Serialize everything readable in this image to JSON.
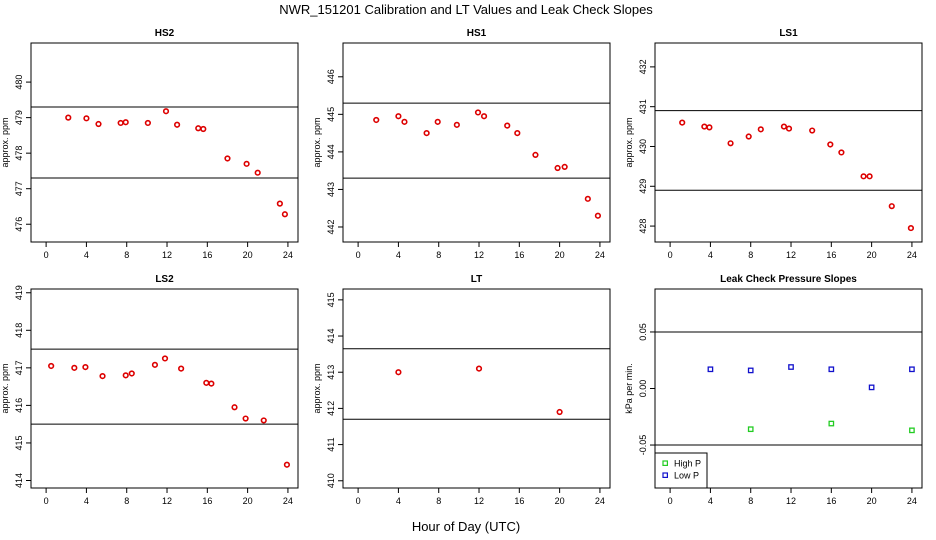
{
  "figure": {
    "title": "NWR_151201  Calibration and LT Values and Leak Check Slopes",
    "xlabel": "Hour of Day (UTC)"
  },
  "chart_data": [
    {
      "id": "hs2",
      "type": "scatter",
      "title": "HS2",
      "ylabel": "approx. ppm",
      "xlim": [
        -1.5,
        25
      ],
      "ylim": [
        475.5,
        481.1
      ],
      "xticks": [
        0,
        4,
        8,
        12,
        16,
        20,
        24
      ],
      "yticks": [
        476,
        477,
        478,
        479,
        480
      ],
      "hlines": [
        479.3,
        477.3
      ],
      "points_color": "#dd0000",
      "x": [
        2.2,
        4.0,
        5.2,
        7.4,
        7.9,
        10.1,
        11.9,
        13.0,
        15.1,
        15.6,
        18.0,
        19.9,
        21.0,
        23.2,
        23.7
      ],
      "y": [
        479.0,
        478.98,
        478.82,
        478.85,
        478.87,
        478.85,
        479.18,
        478.8,
        478.7,
        478.68,
        477.85,
        477.7,
        477.45,
        476.58,
        476.28
      ]
    },
    {
      "id": "hs1",
      "type": "scatter",
      "title": "HS1",
      "ylabel": "approx. ppm",
      "xlim": [
        -1.5,
        25
      ],
      "ylim": [
        441.6,
        446.9
      ],
      "xticks": [
        0,
        4,
        8,
        12,
        16,
        20,
        24
      ],
      "yticks": [
        442,
        443,
        444,
        445,
        446
      ],
      "hlines": [
        445.3,
        443.3
      ],
      "points_color": "#dd0000",
      "x": [
        1.8,
        4.0,
        4.6,
        6.8,
        7.9,
        9.8,
        11.9,
        12.5,
        14.8,
        15.8,
        17.6,
        19.8,
        20.5,
        22.8,
        23.8
      ],
      "y": [
        444.85,
        444.95,
        444.8,
        444.5,
        444.8,
        444.72,
        445.05,
        444.95,
        444.7,
        444.5,
        443.92,
        443.57,
        443.6,
        442.75,
        442.3
      ]
    },
    {
      "id": "ls1",
      "type": "scatter",
      "title": "LS1",
      "ylabel": "approx. ppm",
      "xlim": [
        -1.5,
        25
      ],
      "ylim": [
        427.6,
        432.6
      ],
      "xticks": [
        0,
        4,
        8,
        12,
        16,
        20,
        24
      ],
      "yticks": [
        428,
        429,
        430,
        431,
        432
      ],
      "hlines": [
        430.9,
        428.9
      ],
      "points_color": "#dd0000",
      "x": [
        1.2,
        3.4,
        3.9,
        6.0,
        7.8,
        9.0,
        11.3,
        11.8,
        14.1,
        15.9,
        17.0,
        19.2,
        19.8,
        22.0,
        23.9
      ],
      "y": [
        430.6,
        430.5,
        430.48,
        430.08,
        430.25,
        430.43,
        430.5,
        430.45,
        430.4,
        430.05,
        429.85,
        429.25,
        429.25,
        428.5,
        427.95
      ]
    },
    {
      "id": "ls2",
      "type": "scatter",
      "title": "LS2",
      "ylabel": "approx. ppm",
      "xlim": [
        -1.5,
        25
      ],
      "ylim": [
        413.8,
        419.1
      ],
      "xticks": [
        0,
        4,
        8,
        12,
        16,
        20,
        24
      ],
      "yticks": [
        414,
        415,
        416,
        417,
        418,
        419
      ],
      "hlines": [
        417.5,
        415.5
      ],
      "points_color": "#dd0000",
      "x": [
        0.5,
        2.8,
        3.9,
        5.6,
        7.9,
        8.5,
        10.8,
        11.8,
        13.4,
        15.9,
        16.4,
        18.7,
        19.8,
        21.6,
        23.9
      ],
      "y": [
        417.05,
        417.0,
        417.02,
        416.78,
        416.8,
        416.85,
        417.08,
        417.25,
        416.98,
        416.6,
        416.58,
        415.95,
        415.65,
        415.6,
        414.42
      ]
    },
    {
      "id": "lt",
      "type": "scatter",
      "title": "LT",
      "ylabel": "approx. ppm",
      "xlim": [
        -1.5,
        25
      ],
      "ylim": [
        409.8,
        415.3
      ],
      "xticks": [
        0,
        4,
        8,
        12,
        16,
        20,
        24
      ],
      "yticks": [
        410,
        411,
        412,
        413,
        414,
        415
      ],
      "hlines": [
        413.65,
        411.7
      ],
      "points_color": "#dd0000",
      "x": [
        4.0,
        12.0,
        20.0
      ],
      "y": [
        413.0,
        413.1,
        411.9
      ]
    },
    {
      "id": "leak",
      "type": "scatter",
      "title": "Leak Check Pressure Slopes",
      "ylabel": "kPa per min.",
      "xlim": [
        -1.5,
        25
      ],
      "ylim": [
        -0.088,
        0.088
      ],
      "xticks": [
        0,
        4,
        8,
        12,
        16,
        20,
        24
      ],
      "yticks": [
        -0.05,
        0.0,
        0.05
      ],
      "ytick_labels": [
        "-0.05",
        "0.00",
        "0.05"
      ],
      "hlines": [
        0.05,
        -0.05
      ],
      "legend": {
        "position": "bottom-left",
        "entries": [
          "High P",
          "Low P"
        ]
      },
      "series": [
        {
          "name": "High P",
          "color": "#22cc22",
          "x": [
            8,
            16,
            24
          ],
          "y": [
            -0.036,
            -0.031,
            -0.037
          ]
        },
        {
          "name": "Low P",
          "color": "#1111cc",
          "x": [
            4,
            8,
            12,
            16,
            20,
            24
          ],
          "y": [
            0.017,
            0.016,
            0.019,
            0.017,
            0.001,
            0.017
          ]
        }
      ]
    }
  ]
}
